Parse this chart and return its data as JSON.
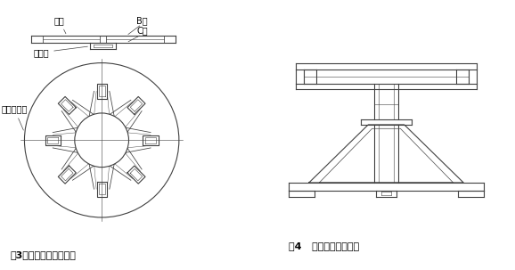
{
  "bg_color": "#ffffff",
  "line_color": "#404040",
  "fig3_caption": "图3灌包架的分料箱部分",
  "fig4_caption": "图4   灌包架制作完成图",
  "label_falan": "法兰",
  "label_fangfalan": "方法兰",
  "label_Bmian": "B面",
  "label_Cmian": "C面",
  "label_8fen": "八个分料口",
  "font_size_caption": 8,
  "font_size_label": 7
}
